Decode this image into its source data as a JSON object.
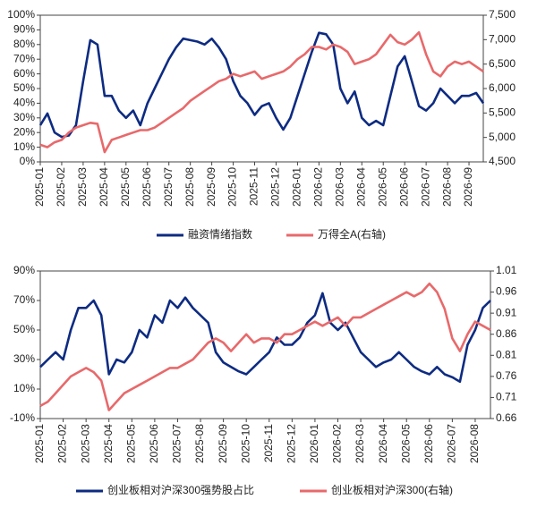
{
  "chart_data": [
    {
      "type": "line",
      "categories": [
        "2025-01",
        null,
        null,
        "2025-02",
        null,
        null,
        "2025-03",
        null,
        null,
        "2025-04",
        null,
        null,
        "2025-05",
        null,
        null,
        "2025-06",
        null,
        null,
        "2025-07",
        null,
        null,
        "2025-08",
        null,
        null,
        "2025-09",
        null,
        null,
        "2025-10",
        null,
        null,
        "2025-11",
        null,
        null,
        "2025-12",
        null,
        null,
        "2026-01",
        null,
        null,
        "2026-02",
        null,
        null,
        "2026-03",
        null,
        null,
        "2026-04",
        null,
        null,
        "2026-05",
        null,
        null,
        "2026-06",
        null,
        null,
        "2026-07",
        null,
        null,
        "2026-08",
        null,
        null,
        "2026-09",
        null,
        null
      ],
      "series": [
        {
          "name": "融资情绪指数",
          "color": "#0d2b82",
          "values": [
            25,
            33,
            20,
            17,
            18,
            25,
            55,
            83,
            80,
            45,
            45,
            35,
            30,
            35,
            25,
            40,
            50,
            60,
            70,
            78,
            84,
            83,
            82,
            80,
            84,
            78,
            70,
            55,
            45,
            40,
            32,
            38,
            40,
            30,
            22,
            30,
            45,
            60,
            75,
            88,
            87,
            80,
            50,
            40,
            48,
            30,
            25,
            28,
            25,
            45,
            65,
            72,
            55,
            38,
            35,
            40,
            50,
            45,
            40,
            45,
            45,
            47,
            40
          ]
        },
        {
          "name": "万得全A(右轴)",
          "color": "#e8696b",
          "axis": "y2",
          "values": [
            4850,
            4800,
            4900,
            4950,
            5100,
            5200,
            5250,
            5300,
            5280,
            4700,
            4950,
            5000,
            5050,
            5100,
            5150,
            5150,
            5200,
            5300,
            5400,
            5500,
            5600,
            5750,
            5850,
            5950,
            6050,
            6150,
            6200,
            6300,
            6250,
            6300,
            6350,
            6200,
            6250,
            6300,
            6350,
            6450,
            6600,
            6700,
            6850,
            6850,
            6800,
            6900,
            6850,
            6750,
            6500,
            6550,
            6600,
            6700,
            6900,
            7100,
            6950,
            6900,
            7000,
            7150,
            6700,
            6350,
            6250,
            6450,
            6550,
            6500,
            6550,
            6450,
            6350
          ]
        }
      ],
      "ylim": [
        0,
        100
      ],
      "yticks": [
        {
          "value": 0,
          "label": "0%"
        },
        {
          "value": 10,
          "label": "10%"
        },
        {
          "value": 20,
          "label": "20%"
        },
        {
          "value": 30,
          "label": "30%"
        },
        {
          "value": 40,
          "label": "40%"
        },
        {
          "value": 50,
          "label": "50%"
        },
        {
          "value": 60,
          "label": "60%"
        },
        {
          "value": 70,
          "label": "70%"
        },
        {
          "value": 80,
          "label": "80%"
        },
        {
          "value": 90,
          "label": "90%"
        },
        {
          "value": 100,
          "label": "100%"
        }
      ],
      "y2lim": [
        4500,
        7500
      ],
      "y2ticks": [
        {
          "value": 4500,
          "label": "4,500"
        },
        {
          "value": 5000,
          "label": "5,000"
        },
        {
          "value": 5500,
          "label": "5,500"
        },
        {
          "value": 6000,
          "label": "6,000"
        },
        {
          "value": 6500,
          "label": "6,500"
        },
        {
          "value": 7000,
          "label": "7,000"
        },
        {
          "value": 7500,
          "label": "7,500"
        }
      ]
    },
    {
      "type": "line",
      "categories": [
        "2025-01",
        null,
        null,
        "2025-02",
        null,
        null,
        "2025-03",
        null,
        null,
        "2025-04",
        null,
        null,
        "2025-05",
        null,
        null,
        "2025-06",
        null,
        null,
        "2025-07",
        null,
        null,
        "2025-08",
        null,
        null,
        "2025-09",
        null,
        null,
        "2025-10",
        null,
        null,
        "2025-11",
        null,
        null,
        "2025-12",
        null,
        null,
        "2026-01",
        null,
        null,
        "2026-02",
        null,
        null,
        "2026-03",
        null,
        null,
        "2026-04",
        null,
        null,
        "2026-05",
        null,
        null,
        "2026-06",
        null,
        null,
        "2026-07",
        null,
        null,
        "2026-08",
        null,
        null
      ],
      "series": [
        {
          "name": "创业板相对沪深300强势股占比",
          "color": "#0d2b82",
          "values": [
            25,
            30,
            35,
            30,
            50,
            65,
            65,
            70,
            60,
            20,
            30,
            28,
            35,
            50,
            45,
            60,
            55,
            70,
            65,
            72,
            65,
            60,
            55,
            35,
            28,
            25,
            22,
            20,
            25,
            30,
            35,
            45,
            40,
            40,
            45,
            55,
            60,
            75,
            55,
            50,
            55,
            45,
            35,
            30,
            25,
            28,
            30,
            35,
            30,
            25,
            22,
            20,
            25,
            20,
            18,
            15,
            40,
            50,
            65,
            70
          ]
        },
        {
          "name": "创业板相对沪深300(右轴)",
          "color": "#e8696b",
          "axis": "y2",
          "values": [
            0.69,
            0.7,
            0.72,
            0.74,
            0.76,
            0.77,
            0.78,
            0.77,
            0.75,
            0.68,
            0.7,
            0.72,
            0.73,
            0.74,
            0.75,
            0.76,
            0.77,
            0.78,
            0.78,
            0.79,
            0.8,
            0.82,
            0.84,
            0.85,
            0.84,
            0.82,
            0.84,
            0.86,
            0.84,
            0.85,
            0.85,
            0.84,
            0.86,
            0.86,
            0.87,
            0.88,
            0.89,
            0.88,
            0.89,
            0.9,
            0.88,
            0.9,
            0.9,
            0.91,
            0.92,
            0.93,
            0.94,
            0.95,
            0.96,
            0.95,
            0.96,
            0.98,
            0.96,
            0.92,
            0.85,
            0.82,
            0.86,
            0.89,
            0.88,
            0.87
          ]
        }
      ],
      "ylim": [
        -10,
        90
      ],
      "yticks": [
        {
          "value": -10,
          "label": "-10%"
        },
        {
          "value": 10,
          "label": "10%"
        },
        {
          "value": 30,
          "label": "30%"
        },
        {
          "value": 50,
          "label": "50%"
        },
        {
          "value": 70,
          "label": "70%"
        },
        {
          "value": 90,
          "label": "90%"
        }
      ],
      "y2lim": [
        0.66,
        1.01
      ],
      "y2ticks": [
        0.66,
        0.71,
        0.76,
        0.81,
        0.86,
        0.91,
        0.96,
        1.01
      ]
    }
  ]
}
